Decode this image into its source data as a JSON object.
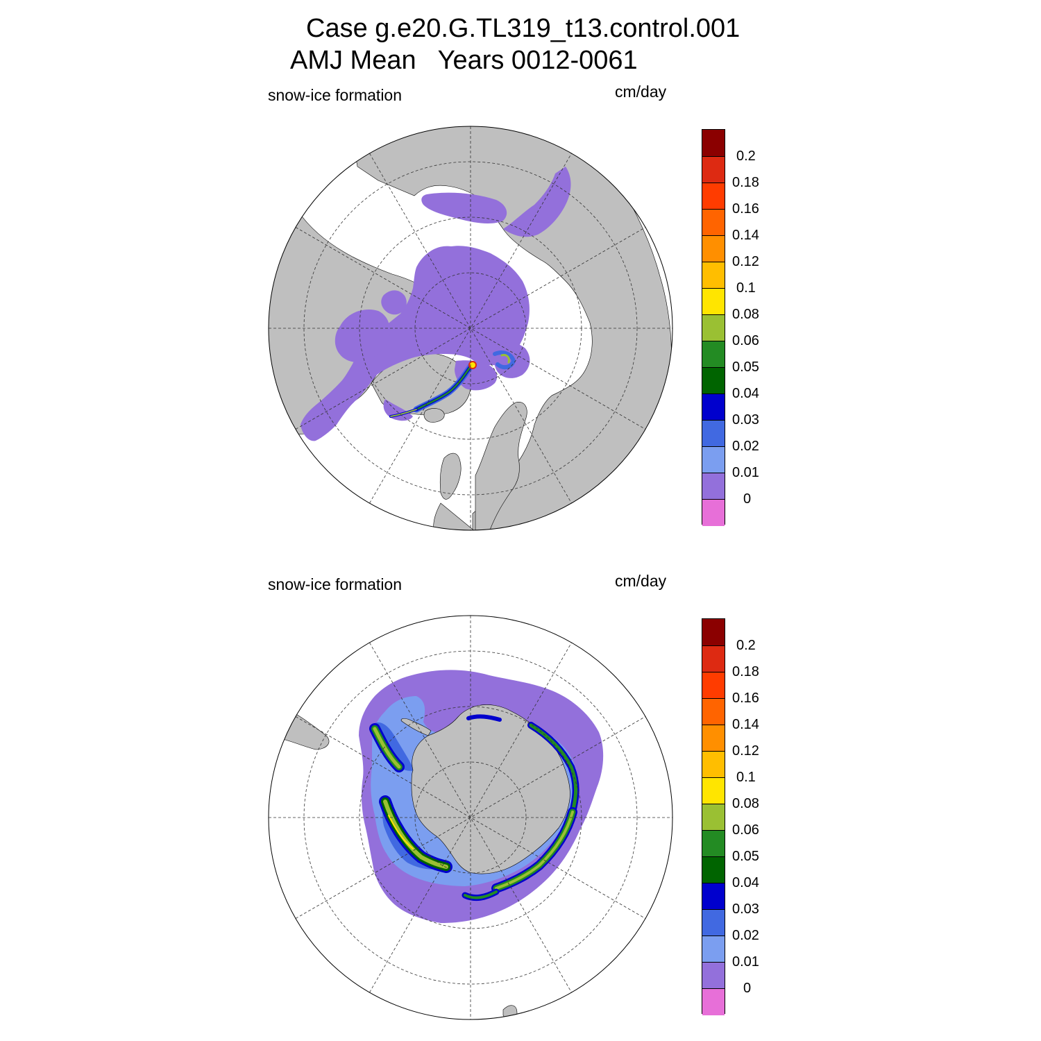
{
  "title": {
    "line1": "Case g.e20.G.TL319_t13.control.001",
    "line2": "AMJ Mean   Years 0012-0061"
  },
  "panels": [
    {
      "id": "north",
      "hemisphere": "north",
      "variable_label": "snow-ice formation",
      "units_label": "cm/day"
    },
    {
      "id": "south",
      "hemisphere": "south",
      "variable_label": "snow-ice formation",
      "units_label": "cm/day"
    }
  ],
  "colorbar": {
    "tick_labels": [
      "0.2",
      "0.18",
      "0.16",
      "0.14",
      "0.12",
      "0.1",
      "0.08",
      "0.06",
      "0.05",
      "0.04",
      "0.03",
      "0.02",
      "0.01",
      "0"
    ],
    "colors": [
      "#8b0000",
      "#dd2a12",
      "#ff3c00",
      "#ff6400",
      "#ff8f00",
      "#ffbe00",
      "#ffe500",
      "#9ac033",
      "#238b23",
      "#006400",
      "#0000cd",
      "#4169e1",
      "#7b9ef0",
      "#9370db",
      "#e76fd8"
    ]
  },
  "map_colors": {
    "land": "#bfbfbf",
    "no_ice": "#ffffff",
    "ice_0_001": "#9370db",
    "ice_001_002": "#7b9ef0",
    "ice_002_003": "#4169e1",
    "ice_003_004": "#0000cd",
    "ice_004_005": "#006400",
    "ice_005_006": "#238b23",
    "ice_006_008": "#9ac033",
    "ice_008_01": "#ffe500"
  }
}
